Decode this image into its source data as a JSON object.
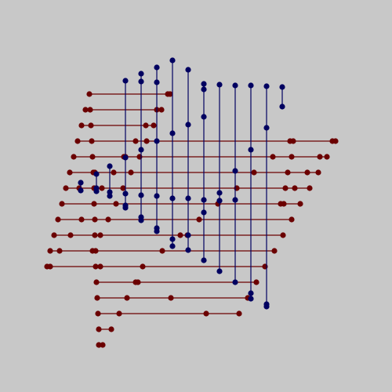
{
  "colors": {
    "background": "#c8c8c8",
    "horizontal": "#6b0000",
    "vertical": "#000060"
  },
  "horizontal_segments": [
    {
      "points": [
        114,
        214,
        217
      ]
    },
    {
      "points": [
        109,
        115,
        200,
        206
      ]
    },
    {
      "points": [
        104,
        116,
        186,
        196
      ]
    },
    {
      "points": [
        99,
        117,
        173,
        187,
        370,
        374,
        424,
        428
      ]
    },
    {
      "points": [
        94,
        118,
        158,
        160,
        178,
        348,
        372,
        408,
        417
      ]
    },
    {
      "points": [
        89,
        119,
        121,
        145,
        167,
        324,
        367,
        392,
        406
      ]
    },
    {
      "points": [
        84,
        101,
        120,
        130,
        157,
        302,
        364,
        376,
        395
      ]
    },
    {
      "points": [
        79,
        120,
        148,
        278,
        358,
        362,
        383
      ]
    },
    {
      "points": [
        74,
        104,
        121,
        138,
        254,
        372
      ]
    },
    {
      "points": [
        69,
        90,
        121,
        128,
        230,
        239,
        361
      ]
    },
    {
      "points": [
        64,
        76,
        118,
        122,
        207,
        350
      ]
    },
    {
      "points": [
        60,
        64,
        122,
        128,
        182,
        338
      ]
    },
    {
      "points": [
        123,
        173,
        176,
        327
      ]
    },
    {
      "points": [
        124,
        162,
        218,
        316
      ]
    },
    {
      "points": [
        125,
        152,
        263,
        305
      ]
    },
    {
      "points": [
        126,
        142
      ]
    },
    {
      "points": [
        126,
        131
      ]
    }
  ],
  "vertical_segments": [
    {
      "points": [
        103,
        233,
        243
      ]
    },
    {
      "points": [
        123,
        222,
        240,
        244
      ]
    },
    {
      "points": [
        140,
        212,
        245,
        250
      ]
    },
    {
      "points": [
        160,
        103,
        201,
        247,
        262,
        265
      ]
    },
    {
      "points": [
        180,
        94,
        104,
        191,
        249,
        277,
        281
      ]
    },
    {
      "points": [
        200,
        86,
        105,
        180,
        250,
        291,
        295
      ]
    },
    {
      "points": [
        220,
        77,
        170,
        253,
        305,
        314
      ]
    },
    {
      "points": [
        240,
        89,
        159,
        253,
        300,
        319
      ]
    },
    {
      "points": [
        260,
        107,
        114,
        149,
        255,
        271,
        332
      ]
    },
    {
      "points": [
        280,
        108,
        246,
        256,
        346
      ]
    },
    {
      "points": [
        300,
        109,
        218,
        255,
        360
      ]
    },
    {
      "points": [
        320,
        109,
        191,
        374,
        381
      ]
    },
    {
      "points": [
        340,
        110,
        163,
        388,
        391
      ]
    },
    {
      "points": [
        360,
        111,
        136
      ]
    }
  ]
}
